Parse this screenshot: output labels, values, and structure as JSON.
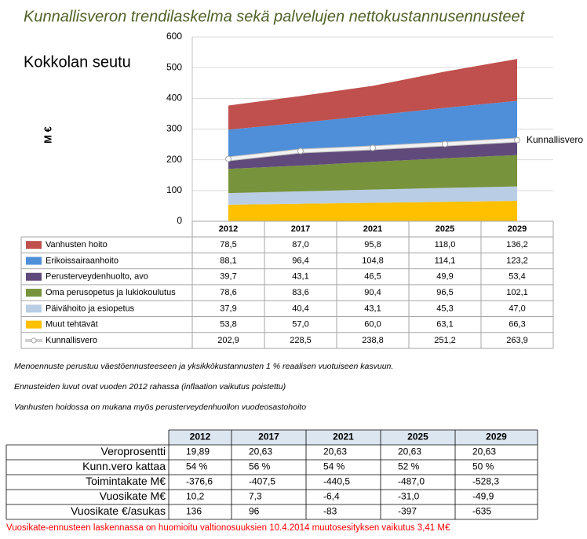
{
  "chart_data": {
    "type": "area",
    "title": "Kunnallisveron trendilaskelma sekä palvelujen nettokustannusennusteet",
    "subtitle": "Kokkolan seutu",
    "y_label": "M €",
    "categories": [
      "2012",
      "2017",
      "2021",
      "2025",
      "2029"
    ],
    "stacked": true,
    "grid": true,
    "ylim": [
      0,
      600
    ],
    "yticks": [
      0,
      100,
      200,
      300,
      400,
      500,
      600
    ],
    "series": [
      {
        "name": "Vanhusten hoito",
        "color": "#C0504D",
        "values": [
          78.5,
          87.0,
          95.8,
          118.0,
          136.2
        ],
        "value_labels": [
          "78,5",
          "87,0",
          "95,8",
          "118,0",
          "136,2"
        ]
      },
      {
        "name": "Erikoissairaanhoito",
        "color": "#4F8ED8",
        "values": [
          88.1,
          96.4,
          104.8,
          114.1,
          123.2
        ],
        "value_labels": [
          "88,1",
          "96,4",
          "104,8",
          "114,1",
          "123,2"
        ]
      },
      {
        "name": "Perusterveydenhuolto, avo",
        "color": "#604A7B",
        "values": [
          39.7,
          43.1,
          46.5,
          49.9,
          53.4
        ],
        "value_labels": [
          "39,7",
          "43,1",
          "46,5",
          "49,9",
          "53,4"
        ]
      },
      {
        "name": "Oma perusopetus ja lukiokoulutus",
        "color": "#77933C",
        "values": [
          78.6,
          83.6,
          90.4,
          96.5,
          102.1
        ],
        "value_labels": [
          "78,6",
          "83,6",
          "90,4",
          "96,5",
          "102,1"
        ]
      },
      {
        "name": "Päivähoito ja esiopetus",
        "color": "#B9CDE5",
        "values": [
          37.9,
          40.4,
          43.1,
          45.3,
          47.0
        ],
        "value_labels": [
          "37,9",
          "40,4",
          "43,1",
          "45,3",
          "47,0"
        ]
      },
      {
        "name": "Muut tehtävät",
        "color": "#FFC000",
        "values": [
          53.8,
          57.0,
          60.0,
          63.1,
          66.3
        ],
        "value_labels": [
          "53,8",
          "57,0",
          "60,0",
          "63,1",
          "66,3"
        ]
      },
      {
        "name": "Kunnallisvero",
        "type": "line",
        "color": "#F2F2F2",
        "values": [
          202.9,
          228.5,
          238.8,
          251.2,
          263.9
        ],
        "value_labels": [
          "202,9",
          "228,5",
          "238,8",
          "251,2",
          "263,9"
        ]
      }
    ]
  },
  "notes": [
    "Menoennuste perustuu väestöennusteeseen ja yksikkökustannusten 1 % reaalisen vuotuiseen kasvuun.",
    "Ennusteiden luvut ovat vuoden 2012 rahassa (inflaation vaikutus poistettu)",
    "Vanhusten hoidossa on mukana myös perusterveydenhuollon vuodeosastohoito"
  ],
  "table": {
    "header": [
      "2012",
      "2017",
      "2021",
      "2025",
      "2029"
    ],
    "rows": [
      [
        "Veroprosentti",
        "19,89",
        "20,63",
        "20,63",
        "20,63",
        "20,63"
      ],
      [
        "Kunn.vero kattaa",
        "54 %",
        "56 %",
        "54 %",
        "52 %",
        "50 %"
      ],
      [
        "Toimintakate M€",
        "-376,6",
        "-407,5",
        "-440,5",
        "-487,0",
        "-528,3"
      ],
      [
        "Vuosikate M€",
        "10,2",
        "7,3",
        "-6,4",
        "-31,0",
        "-49,9"
      ],
      [
        "Vuosikate €/asukas",
        "136",
        "96",
        "-83",
        "-397",
        "-635"
      ]
    ]
  },
  "footnote": "Vuosikate-ennusteen laskennassa on huomioitu valtionosuuksien 10.4.2014 muutosesityksen vaikutus 3,41 M€"
}
